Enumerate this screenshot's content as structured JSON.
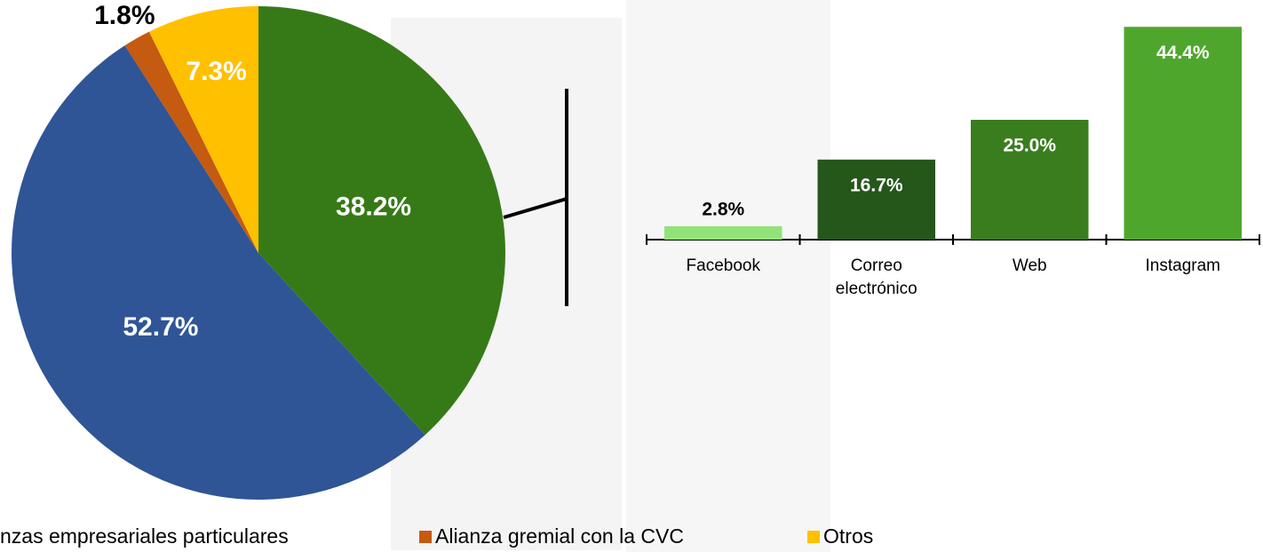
{
  "chart_data": [
    {
      "type": "pie",
      "categories": [
        null,
        "nzas empresariales particulares",
        "Alianza gremial con la CVC",
        "Otros"
      ],
      "values": [
        38.2,
        52.7,
        1.8,
        7.3
      ],
      "value_labels": [
        "38.2%",
        "52.7%",
        "1.8%",
        "7.3%"
      ],
      "colors": [
        "#367a18",
        "#2f5597",
        "#c55a11",
        "#ffc000"
      ],
      "legend": "bottom"
    },
    {
      "type": "bar",
      "categories": [
        "Facebook",
        "Correo electrónico",
        "Web",
        "Instagram"
      ],
      "values": [
        2.8,
        16.7,
        25.0,
        44.4
      ],
      "value_labels": [
        "2.8%",
        "16.7%",
        "25.0%",
        "44.4%"
      ],
      "colors": [
        "#92e27a",
        "#25561a",
        "#3a7d1e",
        "#4ea72c"
      ]
    }
  ]
}
